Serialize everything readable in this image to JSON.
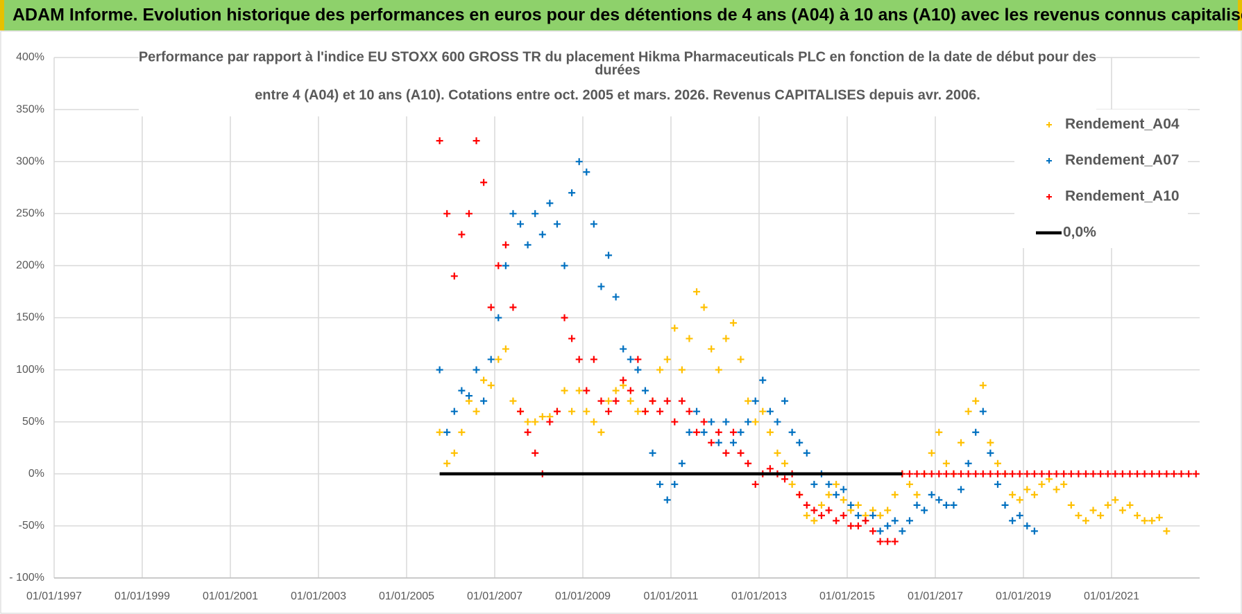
{
  "header": {
    "title": "ADAM Informe. Evolution historique des performances en euros pour des détentions de 4 ans (A04) à 10 ans (A10) avec les revenus connus capitalisés"
  },
  "chart_data": {
    "type": "scatter",
    "title": [
      "Performance par rapport à l'indice EU STOXX 600 GROSS TR  du placement Hikma Pharmaceuticals PLC en fonction de la date de début pour des",
      "durées",
      "entre 4 (A04) et 10 ans (A10). Cotations entre oct. 2005 et mars. 2026. Revenus CAPITALISES depuis avr. 2006."
    ],
    "xlim": [
      "01/01/1997",
      "01/01/2023"
    ],
    "xticks": [
      "01/01/1997",
      "01/01/1999",
      "01/01/2001",
      "01/01/2003",
      "01/01/2005",
      "01/01/2007",
      "01/01/2009",
      "01/01/2011",
      "01/01/2013",
      "01/01/2015",
      "01/01/2017",
      "01/01/2019",
      "01/01/2021"
    ],
    "ylim": [
      -100,
      400
    ],
    "yticks": [
      {
        "value": -100,
        "label": "- 100%"
      },
      {
        "value": -50,
        "label": "-50%"
      },
      {
        "value": 0,
        "label": "0%"
      },
      {
        "value": 50,
        "label": "50%"
      },
      {
        "value": 100,
        "label": "100%"
      },
      {
        "value": 150,
        "label": "150%"
      },
      {
        "value": 200,
        "label": "200%"
      },
      {
        "value": 250,
        "label": "250%"
      },
      {
        "value": 300,
        "label": "300%"
      },
      {
        "value": 350,
        "label": "350%"
      },
      {
        "value": 400,
        "label": "400%"
      }
    ],
    "grid": true,
    "legend": "upper right",
    "series": [
      {
        "name": "Rendement_A04",
        "type": "scatter",
        "color": "#ffc000",
        "x": [
          "01/10/2005",
          "01/12/2005",
          "01/02/2006",
          "01/04/2006",
          "01/06/2006",
          "01/08/2006",
          "01/10/2006",
          "01/12/2006",
          "01/02/2007",
          "01/04/2007",
          "01/06/2007",
          "01/08/2007",
          "01/10/2007",
          "01/12/2007",
          "01/02/2008",
          "01/04/2008",
          "01/06/2008",
          "01/08/2008",
          "01/10/2008",
          "01/12/2008",
          "01/02/2009",
          "01/04/2009",
          "01/06/2009",
          "01/08/2009",
          "01/10/2009",
          "01/12/2009",
          "01/02/2010",
          "01/04/2010",
          "01/06/2010",
          "01/08/2010",
          "01/10/2010",
          "01/12/2010",
          "01/02/2011",
          "01/04/2011",
          "01/06/2011",
          "01/08/2011",
          "01/10/2011",
          "01/12/2011",
          "01/02/2012",
          "01/04/2012",
          "01/06/2012",
          "01/08/2012",
          "01/10/2012",
          "01/12/2012",
          "01/02/2013",
          "01/04/2013",
          "01/06/2013",
          "01/08/2013",
          "01/10/2013",
          "01/12/2013",
          "01/02/2014",
          "01/04/2014",
          "01/06/2014",
          "01/08/2014",
          "01/10/2014",
          "01/12/2014",
          "01/02/2015",
          "01/04/2015",
          "01/06/2015",
          "01/08/2015",
          "01/10/2015",
          "01/12/2015",
          "01/02/2016",
          "01/04/2016",
          "01/06/2016",
          "01/08/2016",
          "01/10/2016",
          "01/12/2016",
          "01/02/2017",
          "01/04/2017",
          "01/06/2017",
          "01/08/2017",
          "01/10/2017",
          "01/12/2017",
          "01/02/2018",
          "01/04/2018",
          "01/06/2018",
          "01/08/2018",
          "01/10/2018",
          "01/12/2018",
          "01/02/2019",
          "01/04/2019",
          "01/06/2019",
          "01/08/2019",
          "01/10/2019",
          "01/12/2019",
          "01/02/2020",
          "01/04/2020",
          "01/06/2020",
          "01/08/2020",
          "01/10/2020",
          "01/12/2020",
          "01/02/2021",
          "01/04/2021",
          "01/06/2021",
          "01/08/2021",
          "01/10/2021",
          "01/12/2021",
          "01/02/2022",
          "01/04/2022"
        ],
        "values": [
          40,
          10,
          20,
          40,
          70,
          60,
          90,
          85,
          110,
          120,
          70,
          60,
          50,
          50,
          55,
          55,
          60,
          80,
          60,
          80,
          60,
          50,
          40,
          70,
          80,
          85,
          70,
          60,
          60,
          70,
          100,
          110,
          140,
          100,
          130,
          175,
          160,
          120,
          100,
          130,
          145,
          110,
          70,
          50,
          60,
          40,
          20,
          10,
          -10,
          -20,
          -40,
          -45,
          -30,
          -20,
          -10,
          -25,
          -35,
          -30,
          -40,
          -35,
          -40,
          -35,
          -20,
          0,
          -10,
          -20,
          0,
          20,
          40,
          10,
          0,
          30,
          60,
          70,
          85,
          30,
          10,
          0,
          -20,
          -25,
          -15,
          -20,
          -10,
          -5,
          -15,
          -10,
          -30,
          -40,
          -45,
          -35,
          -40,
          -30,
          -25,
          -35,
          -30,
          -40,
          -45,
          -45,
          -42,
          -55
        ]
      },
      {
        "name": "Rendement_A07",
        "type": "scatter",
        "color": "#0070c0",
        "x": [
          "01/10/2005",
          "01/12/2005",
          "01/02/2006",
          "01/04/2006",
          "01/06/2006",
          "01/08/2006",
          "01/10/2006",
          "01/12/2006",
          "01/02/2007",
          "01/04/2007",
          "01/06/2007",
          "01/08/2007",
          "01/10/2007",
          "01/12/2007",
          "01/02/2008",
          "01/04/2008",
          "01/06/2008",
          "01/08/2008",
          "01/10/2008",
          "01/12/2008",
          "01/02/2009",
          "01/04/2009",
          "01/06/2009",
          "01/08/2009",
          "01/10/2009",
          "01/12/2009",
          "01/02/2010",
          "01/04/2010",
          "01/06/2010",
          "01/08/2010",
          "01/10/2010",
          "01/12/2010",
          "01/02/2011",
          "01/04/2011",
          "01/06/2011",
          "01/08/2011",
          "01/10/2011",
          "01/12/2011",
          "01/02/2012",
          "01/04/2012",
          "01/06/2012",
          "01/08/2012",
          "01/10/2012",
          "01/12/2012",
          "01/02/2013",
          "01/04/2013",
          "01/06/2013",
          "01/08/2013",
          "01/10/2013",
          "01/12/2013",
          "01/02/2014",
          "01/04/2014",
          "01/06/2014",
          "01/08/2014",
          "01/10/2014",
          "01/12/2014",
          "01/02/2015",
          "01/04/2015",
          "01/06/2015",
          "01/08/2015",
          "01/10/2015",
          "01/12/2015",
          "01/02/2016",
          "01/04/2016",
          "01/06/2016",
          "01/08/2016",
          "01/10/2016",
          "01/12/2016",
          "01/02/2017",
          "01/04/2017",
          "01/06/2017",
          "01/08/2017",
          "01/10/2017",
          "01/12/2017",
          "01/02/2018",
          "01/04/2018",
          "01/06/2018",
          "01/08/2018",
          "01/10/2018",
          "01/12/2018",
          "01/02/2019",
          "01/04/2019"
        ],
        "values": [
          100,
          40,
          60,
          80,
          75,
          100,
          70,
          110,
          150,
          200,
          250,
          240,
          220,
          250,
          230,
          260,
          240,
          200,
          270,
          300,
          290,
          240,
          180,
          210,
          170,
          120,
          110,
          100,
          80,
          20,
          -10,
          -25,
          -10,
          10,
          40,
          60,
          40,
          50,
          30,
          50,
          30,
          40,
          50,
          70,
          90,
          60,
          50,
          70,
          40,
          30,
          20,
          -10,
          0,
          -10,
          -20,
          -15,
          -30,
          -40,
          -45,
          -40,
          -55,
          -50,
          -45,
          -55,
          -45,
          -30,
          -35,
          -20,
          -25,
          -30,
          -30,
          -15,
          10,
          40,
          60,
          20,
          -10,
          -30,
          -45,
          -40,
          -50,
          -55
        ]
      },
      {
        "name": "Rendement_A10",
        "type": "scatter",
        "color": "#ff0000",
        "x": [
          "01/10/2005",
          "01/12/2005",
          "01/02/2006",
          "01/04/2006",
          "01/06/2006",
          "01/08/2006",
          "01/10/2006",
          "01/12/2006",
          "01/02/2007",
          "01/04/2007",
          "01/06/2007",
          "01/08/2007",
          "01/10/2007",
          "01/12/2007",
          "01/02/2008",
          "01/04/2008",
          "01/06/2008",
          "01/08/2008",
          "01/10/2008",
          "01/12/2008",
          "01/02/2009",
          "01/04/2009",
          "01/06/2009",
          "01/08/2009",
          "01/10/2009",
          "01/12/2009",
          "01/02/2010",
          "01/04/2010",
          "01/06/2010",
          "01/08/2010",
          "01/10/2010",
          "01/12/2010",
          "01/02/2011",
          "01/04/2011",
          "01/06/2011",
          "01/08/2011",
          "01/10/2011",
          "01/12/2011",
          "01/02/2012",
          "01/04/2012",
          "01/06/2012",
          "01/08/2012",
          "01/10/2012",
          "01/12/2012",
          "01/02/2013",
          "01/04/2013",
          "01/06/2013",
          "01/08/2013",
          "01/10/2013",
          "01/12/2013",
          "01/02/2014",
          "01/04/2014",
          "01/06/2014",
          "01/08/2014",
          "01/10/2014",
          "01/12/2014",
          "01/02/2015",
          "01/04/2015",
          "01/06/2015",
          "01/08/2015",
          "01/10/2015",
          "01/12/2015",
          "01/02/2016",
          "01/04/2016",
          "01/06/2016",
          "01/08/2016",
          "01/10/2016",
          "01/12/2016",
          "01/02/2017",
          "01/04/2017",
          "01/06/2017",
          "01/08/2017",
          "01/10/2017",
          "01/12/2017",
          "01/02/2018",
          "01/04/2018",
          "01/06/2018",
          "01/08/2018",
          "01/10/2018",
          "01/12/2018",
          "01/02/2019",
          "01/04/2019",
          "01/06/2019",
          "01/08/2019",
          "01/10/2019",
          "01/12/2019",
          "01/02/2020",
          "01/04/2020",
          "01/06/2020",
          "01/08/2020",
          "01/10/2020",
          "01/12/2020",
          "01/02/2021",
          "01/04/2021",
          "01/06/2021",
          "01/08/2021",
          "01/10/2021",
          "01/12/2021",
          "01/02/2022",
          "01/04/2022",
          "01/06/2022",
          "01/08/2022",
          "01/10/2022",
          "01/12/2022"
        ],
        "values": [
          320,
          250,
          190,
          230,
          250,
          320,
          280,
          160,
          200,
          220,
          160,
          60,
          40,
          20,
          0,
          50,
          60,
          150,
          130,
          110,
          80,
          110,
          70,
          60,
          70,
          90,
          80,
          110,
          60,
          70,
          60,
          70,
          50,
          70,
          60,
          40,
          50,
          30,
          40,
          20,
          40,
          20,
          10,
          -10,
          0,
          5,
          0,
          -5,
          0,
          -20,
          -30,
          -35,
          -40,
          -35,
          -45,
          -40,
          -50,
          -50,
          -45,
          -55,
          -65,
          -65,
          -65,
          0,
          0,
          0,
          0,
          0,
          0,
          0,
          0,
          0,
          0,
          0,
          0,
          0,
          0,
          0,
          0,
          0,
          0,
          0,
          0,
          0,
          0,
          0,
          0,
          0,
          0,
          0,
          0,
          0,
          0,
          0,
          0,
          0,
          0,
          0,
          0,
          0,
          0,
          0,
          0,
          0
        ]
      },
      {
        "name": "0,0%",
        "type": "line",
        "color": "#000000",
        "x": [
          "01/10/2005",
          "01/04/2016"
        ],
        "values": [
          0,
          0
        ]
      }
    ]
  }
}
